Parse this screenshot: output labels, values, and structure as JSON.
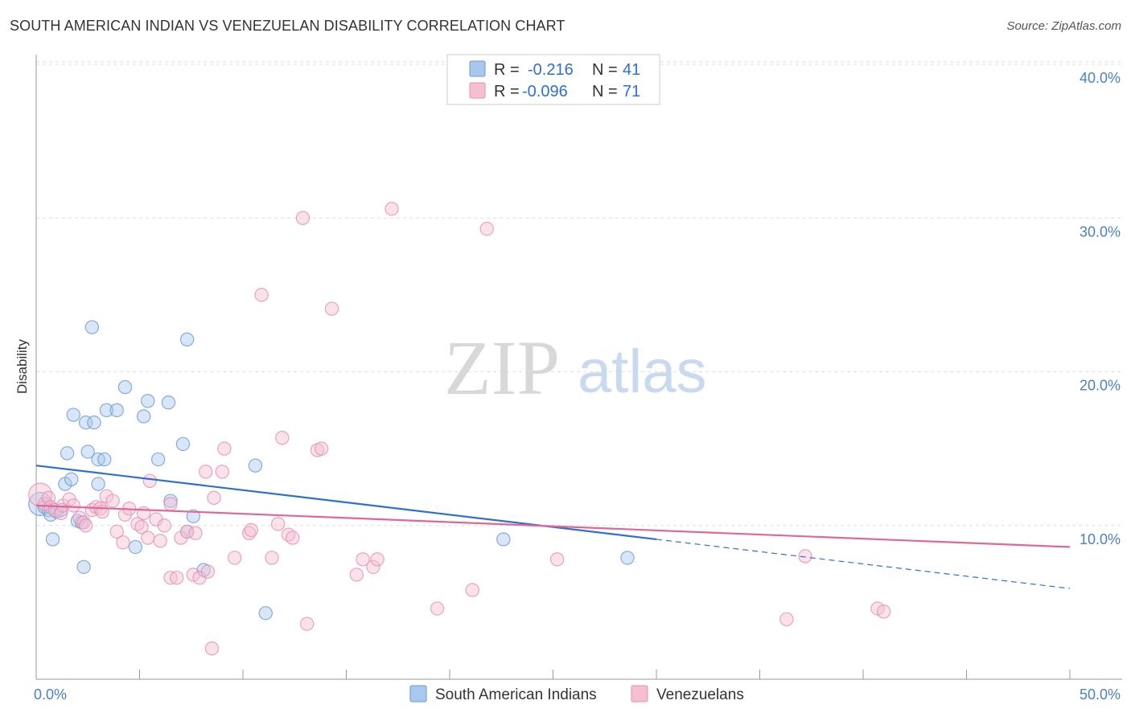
{
  "title": "SOUTH AMERICAN INDIAN VS VENEZUELAN DISABILITY CORRELATION CHART",
  "source": "Source: ZipAtlas.com",
  "watermark": {
    "part1": "ZIP",
    "part2": "atlas"
  },
  "colors": {
    "blue": "#2d6fd2",
    "blue_fill": "#a9c8ee",
    "blue_stroke": "#6a9ad9",
    "pink": "#e0679a",
    "pink_fill": "#f5bfd2",
    "pink_stroke": "#e58fb0",
    "tick_text": "#4a7fcc",
    "grid": "#dddddd"
  },
  "legend": {
    "rows": [
      {
        "r_label": "R =",
        "r_value": "-0.216",
        "n_label": "N =",
        "n_value": "41"
      },
      {
        "r_label": "R =",
        "r_value": "-0.096",
        "n_label": "N =",
        "n_value": "71"
      }
    ]
  },
  "chart_data": {
    "type": "scatter",
    "title": "SOUTH AMERICAN INDIAN VS VENEZUELAN DISABILITY CORRELATION CHART",
    "xlabel": "",
    "ylabel": "Disability",
    "xlim": [
      0,
      50
    ],
    "ylim": [
      0,
      40
    ],
    "x_tick_labels": [
      "0.0%",
      "50.0%"
    ],
    "y_ticks": [
      10,
      20,
      30,
      40
    ],
    "y_tick_labels": [
      "10.0%",
      "20.0%",
      "30.0%",
      "40.0%"
    ],
    "grid": true,
    "legend_position": "top-center",
    "series": [
      {
        "name": "South American Indians",
        "color": "#2d6fd2",
        "r": -0.216,
        "n": 41,
        "trend": {
          "x_start": 0,
          "y_start": 13.9,
          "x_solid_end": 30,
          "y_solid_end": 9.1,
          "x_end": 50,
          "y_end": 5.9
        },
        "points": [
          [
            0.2,
            11.4,
            1.6
          ],
          [
            0.4,
            11.2,
            0.9
          ],
          [
            0.6,
            11.0,
            0.9
          ],
          [
            0.7,
            10.7,
            0.9
          ],
          [
            0.8,
            9.1,
            0.9
          ],
          [
            1.0,
            10.9,
            0.9
          ],
          [
            1.2,
            11.0,
            0.9
          ],
          [
            1.4,
            12.7,
            0.9
          ],
          [
            1.5,
            14.7,
            0.9
          ],
          [
            1.7,
            13.0,
            0.9
          ],
          [
            1.8,
            17.2,
            0.9
          ],
          [
            2.0,
            10.3,
            0.9
          ],
          [
            2.2,
            10.2,
            0.9
          ],
          [
            2.3,
            7.3,
            0.9
          ],
          [
            2.4,
            16.7,
            0.9
          ],
          [
            2.5,
            14.8,
            0.9
          ],
          [
            2.7,
            22.9,
            0.9
          ],
          [
            2.8,
            16.7,
            0.9
          ],
          [
            3.0,
            12.7,
            0.9
          ],
          [
            3.0,
            14.3,
            0.9
          ],
          [
            3.3,
            14.3,
            0.9
          ],
          [
            3.4,
            17.5,
            0.9
          ],
          [
            3.9,
            17.5,
            0.9
          ],
          [
            4.3,
            19.0,
            0.9
          ],
          [
            4.8,
            8.6,
            0.9
          ],
          [
            5.2,
            17.1,
            0.9
          ],
          [
            5.4,
            18.1,
            0.9
          ],
          [
            5.9,
            14.3,
            0.9
          ],
          [
            6.4,
            18.0,
            0.9
          ],
          [
            6.5,
            11.6,
            0.9
          ],
          [
            7.1,
            15.3,
            0.9
          ],
          [
            7.3,
            9.6,
            0.9
          ],
          [
            7.3,
            22.1,
            0.9
          ],
          [
            7.6,
            10.6,
            0.9
          ],
          [
            8.1,
            7.1,
            0.9
          ],
          [
            10.6,
            13.9,
            0.9
          ],
          [
            11.1,
            4.3,
            0.9
          ],
          [
            22.6,
            9.1,
            0.9
          ],
          [
            28.6,
            7.9,
            0.9
          ]
        ]
      },
      {
        "name": "Venezuelans",
        "color": "#e0679a",
        "r": -0.096,
        "n": 71,
        "trend": {
          "x_start": 0,
          "y_start": 11.3,
          "x_end": 50,
          "y_end": 8.6
        },
        "points": [
          [
            0.2,
            12.0,
            1.6
          ],
          [
            0.4,
            11.4,
            0.9
          ],
          [
            0.6,
            11.8,
            0.9
          ],
          [
            0.7,
            11.2,
            0.9
          ],
          [
            0.9,
            11.0,
            0.9
          ],
          [
            1.2,
            10.8,
            0.9
          ],
          [
            1.3,
            11.3,
            0.9
          ],
          [
            1.6,
            11.7,
            0.9
          ],
          [
            1.8,
            11.3,
            0.9
          ],
          [
            2.1,
            10.5,
            0.9
          ],
          [
            2.3,
            10.2,
            0.9
          ],
          [
            2.4,
            10.0,
            0.9
          ],
          [
            2.7,
            11.0,
            0.9
          ],
          [
            2.9,
            11.2,
            0.9
          ],
          [
            3.1,
            11.1,
            0.9
          ],
          [
            3.2,
            10.9,
            0.9
          ],
          [
            3.4,
            11.9,
            0.9
          ],
          [
            3.7,
            11.6,
            0.9
          ],
          [
            3.9,
            9.6,
            0.9
          ],
          [
            4.2,
            8.9,
            0.9
          ],
          [
            4.3,
            10.7,
            0.9
          ],
          [
            4.5,
            11.1,
            0.9
          ],
          [
            4.9,
            10.1,
            0.9
          ],
          [
            5.1,
            9.9,
            0.9
          ],
          [
            5.2,
            10.8,
            0.9
          ],
          [
            5.4,
            9.2,
            0.9
          ],
          [
            5.5,
            12.9,
            0.9
          ],
          [
            5.8,
            10.4,
            0.9
          ],
          [
            6.0,
            9.0,
            0.9
          ],
          [
            6.2,
            10.0,
            0.9
          ],
          [
            6.5,
            6.6,
            0.9
          ],
          [
            6.5,
            11.4,
            0.9
          ],
          [
            6.8,
            6.6,
            0.9
          ],
          [
            7.0,
            9.2,
            0.9
          ],
          [
            7.3,
            9.6,
            0.9
          ],
          [
            7.7,
            9.5,
            0.9
          ],
          [
            7.6,
            6.8,
            0.9
          ],
          [
            7.9,
            6.6,
            0.9
          ],
          [
            8.3,
            7.0,
            0.9
          ],
          [
            8.2,
            13.5,
            0.9
          ],
          [
            8.5,
            2.0,
            0.9
          ],
          [
            8.6,
            11.8,
            0.9
          ],
          [
            9.0,
            13.5,
            0.9
          ],
          [
            9.1,
            15.0,
            0.9
          ],
          [
            9.6,
            7.9,
            0.9
          ],
          [
            10.3,
            9.5,
            0.9
          ],
          [
            10.4,
            9.7,
            0.9
          ],
          [
            10.9,
            25.0,
            0.9
          ],
          [
            11.4,
            7.9,
            0.9
          ],
          [
            11.7,
            10.1,
            0.9
          ],
          [
            11.9,
            15.7,
            0.9
          ],
          [
            12.2,
            9.4,
            0.9
          ],
          [
            12.4,
            9.2,
            0.9
          ],
          [
            12.9,
            30.0,
            0.9
          ],
          [
            13.1,
            3.6,
            0.9
          ],
          [
            13.6,
            14.9,
            0.9
          ],
          [
            13.8,
            15.0,
            0.9
          ],
          [
            14.3,
            24.1,
            0.9
          ],
          [
            15.5,
            6.8,
            0.9
          ],
          [
            15.8,
            7.8,
            0.9
          ],
          [
            16.3,
            7.3,
            0.9
          ],
          [
            16.5,
            7.8,
            0.9
          ],
          [
            17.2,
            30.6,
            0.9
          ],
          [
            19.4,
            4.6,
            0.9
          ],
          [
            21.1,
            5.8,
            0.9
          ],
          [
            21.8,
            29.3,
            0.9
          ],
          [
            25.2,
            7.8,
            0.9
          ],
          [
            36.3,
            3.9,
            0.9
          ],
          [
            37.2,
            8.0,
            0.9
          ],
          [
            40.7,
            4.6,
            0.9
          ],
          [
            41.0,
            4.4,
            0.9
          ]
        ]
      }
    ]
  }
}
